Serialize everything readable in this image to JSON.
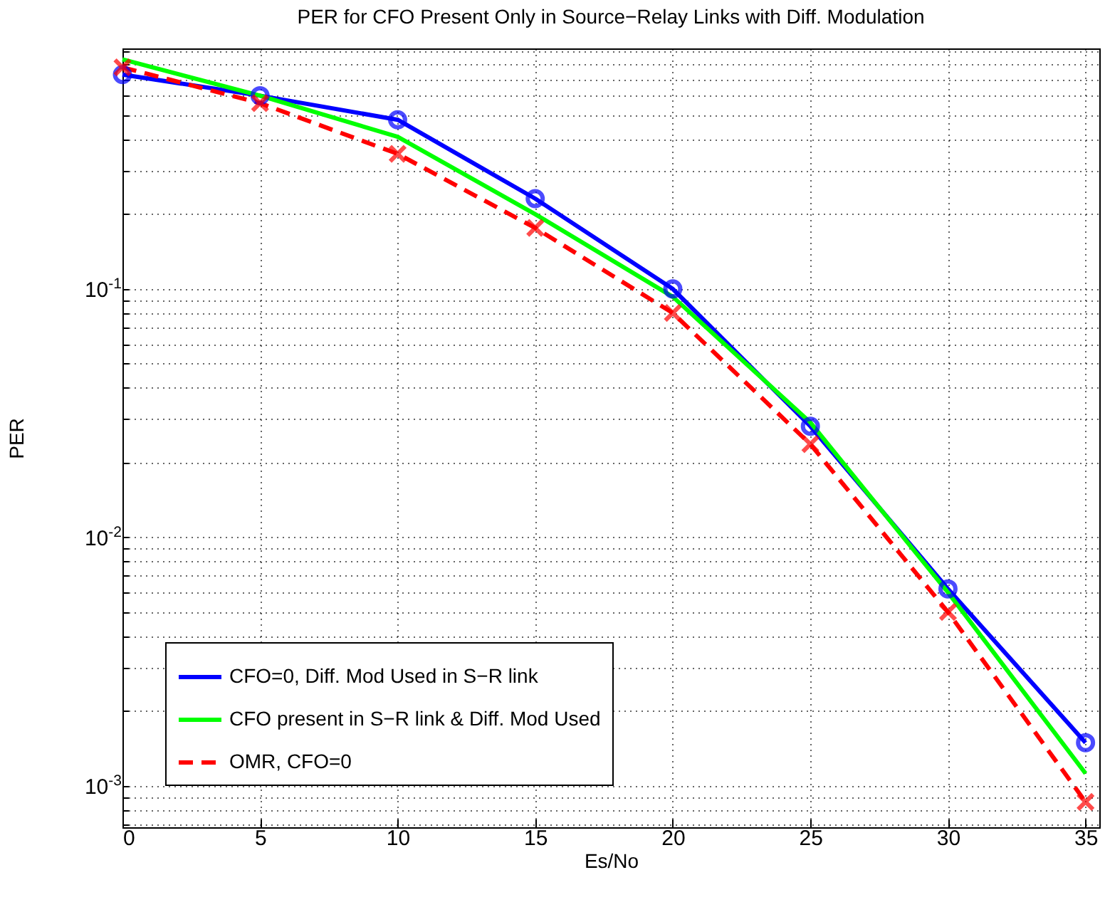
{
  "chart_data": {
    "type": "line",
    "title": "PER for CFO Present Only in Source−Relay Links with Diff. Modulation",
    "xlabel": "Es/No",
    "ylabel": "PER",
    "x": [
      0,
      5,
      10,
      15,
      20,
      25,
      30,
      35
    ],
    "series": [
      {
        "name": "CFO=0, Diff. Mod Used in S−R link",
        "color": "#0000ff",
        "marker": "circle",
        "line_style": "solid",
        "values": [
          0.73,
          0.6,
          0.48,
          0.231,
          0.1,
          0.028,
          0.0062,
          0.00149
        ]
      },
      {
        "name": "CFO present in S−R link & Diff. Mod Used",
        "color": "#00ff00",
        "marker": "none",
        "line_style": "solid",
        "values": [
          0.84,
          0.6,
          0.41,
          0.2,
          0.093,
          0.029,
          0.006,
          0.00112
        ]
      },
      {
        "name": "OMR, CFO=0",
        "color": "#ff0000",
        "marker": "cross",
        "line_style": "dashed",
        "values": [
          0.78,
          0.56,
          0.35,
          0.176,
          0.08,
          0.0237,
          0.005,
          0.00086
        ]
      }
    ],
    "log": "y",
    "xlim": [
      0,
      35.5
    ],
    "xticks": [
      0,
      5,
      10,
      15,
      20,
      25,
      30,
      35
    ],
    "ylim": [
      0.00068,
      0.93
    ],
    "yticks": [
      {
        "value": 0.1,
        "label": "10$^{-1}$"
      },
      {
        "value": 0.01,
        "label": "10$^{-2}$"
      },
      {
        "value": 0.001,
        "label": "10$^{-3}$"
      }
    ],
    "grid": true,
    "legend": "bottom left"
  }
}
